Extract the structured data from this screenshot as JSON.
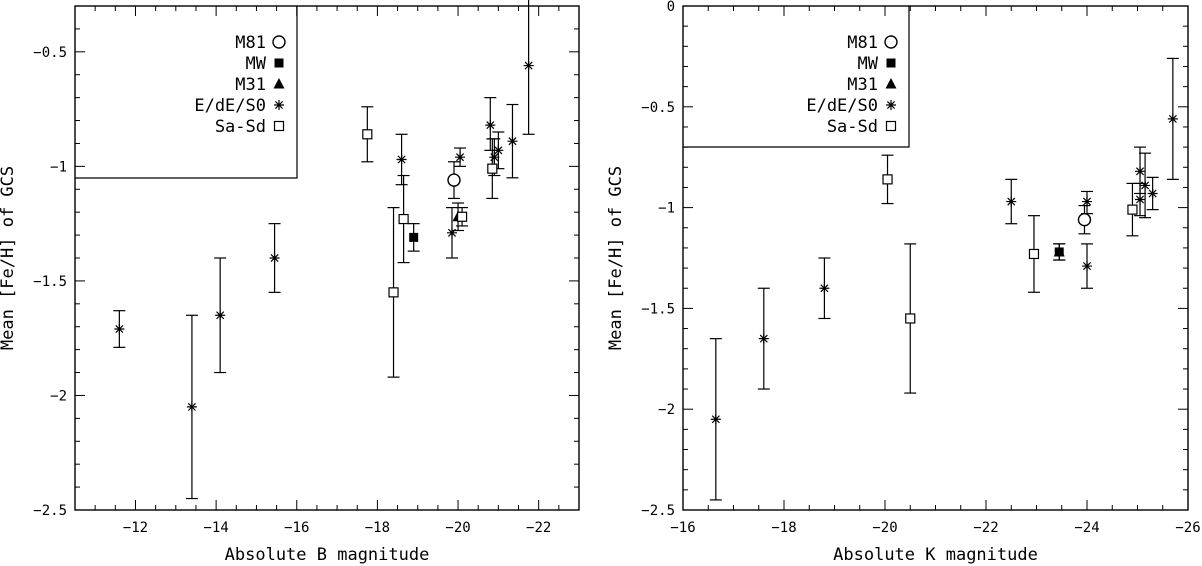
{
  "chart_data": [
    {
      "type": "scatter",
      "xlabel": "Absolute B magnitude",
      "ylabel": "Mean [Fe/H] of GCS",
      "xlim": [
        -10.5,
        -23
      ],
      "ylim": [
        -2.5,
        -0.3
      ],
      "xticks": [
        -12,
        -14,
        -16,
        -18,
        -20,
        -22
      ],
      "xtick_labels": [
        "−12",
        "−14",
        "−16",
        "−18",
        "−20",
        "−22"
      ],
      "yticks": [
        -0.5,
        -1,
        -1.5,
        -2,
        -2.5
      ],
      "ytick_labels": [
        "−0.5",
        "−1",
        "−1.5",
        "−2",
        "−2.5"
      ],
      "legend": {
        "placement": "top-left",
        "entries": [
          {
            "label": "M81",
            "marker": "circle-open"
          },
          {
            "label": "MW",
            "marker": "square-filled"
          },
          {
            "label": "M31",
            "marker": "triangle-filled"
          },
          {
            "label": "E/dE/S0",
            "marker": "asterisk"
          },
          {
            "label": "Sa-Sd",
            "marker": "square-open"
          }
        ]
      },
      "series": [
        {
          "name": "M81",
          "marker": "circle-open",
          "points": [
            {
              "x": -19.9,
              "y": -1.06,
              "lo": -1.14,
              "hi": -0.98
            }
          ]
        },
        {
          "name": "MW",
          "marker": "square-filled",
          "points": [
            {
              "x": -18.9,
              "y": -1.31,
              "lo": -1.37,
              "hi": -1.25
            }
          ]
        },
        {
          "name": "M31",
          "marker": "triangle-filled",
          "points": [
            {
              "x": -20.0,
              "y": -1.22,
              "lo": -1.28,
              "hi": -1.16
            }
          ]
        },
        {
          "name": "E/dE/S0",
          "marker": "asterisk",
          "points": [
            {
              "x": -11.6,
              "y": -1.71,
              "lo": -1.79,
              "hi": -1.63
            },
            {
              "x": -13.4,
              "y": -2.05,
              "lo": -2.45,
              "hi": -1.65
            },
            {
              "x": -14.1,
              "y": -1.65,
              "lo": -1.9,
              "hi": -1.4
            },
            {
              "x": -15.45,
              "y": -1.4,
              "lo": -1.55,
              "hi": -1.25
            },
            {
              "x": -18.6,
              "y": -0.97,
              "lo": -1.08,
              "hi": -0.86
            },
            {
              "x": -19.85,
              "y": -1.29,
              "lo": -1.4,
              "hi": -1.18
            },
            {
              "x": -20.05,
              "y": -0.96,
              "lo": -1.0,
              "hi": -0.92
            },
            {
              "x": -20.8,
              "y": -0.82,
              "lo": -0.93,
              "hi": -0.7
            },
            {
              "x": -20.9,
              "y": -0.96,
              "lo": -1.04,
              "hi": -0.88
            },
            {
              "x": -21.0,
              "y": -0.93,
              "lo": -1.01,
              "hi": -0.85
            },
            {
              "x": -21.35,
              "y": -0.89,
              "lo": -1.05,
              "hi": -0.73
            },
            {
              "x": -21.75,
              "y": -0.56,
              "lo": -0.86,
              "hi": -0.26
            }
          ]
        },
        {
          "name": "Sa-Sd",
          "marker": "square-open",
          "points": [
            {
              "x": -17.75,
              "y": -0.86,
              "lo": -0.98,
              "hi": -0.74
            },
            {
              "x": -18.4,
              "y": -1.55,
              "lo": -1.92,
              "hi": -1.18
            },
            {
              "x": -18.65,
              "y": -1.23,
              "lo": -1.42,
              "hi": -1.04
            },
            {
              "x": -20.1,
              "y": -1.22,
              "lo": -1.26,
              "hi": -1.18
            },
            {
              "x": -20.85,
              "y": -1.01,
              "lo": -1.14,
              "hi": -0.88
            }
          ]
        }
      ]
    },
    {
      "type": "scatter",
      "xlabel": "Absolute K magnitude",
      "ylabel": "Mean [Fe/H] of GCS",
      "xlim": [
        -16,
        -26
      ],
      "ylim": [
        -2.5,
        0
      ],
      "xticks": [
        -16,
        -18,
        -20,
        -22,
        -24,
        -26
      ],
      "xtick_labels": [
        "−16",
        "−18",
        "−20",
        "−22",
        "−24",
        "−26"
      ],
      "yticks": [
        0,
        -0.5,
        -1,
        -1.5,
        -2,
        -2.5
      ],
      "ytick_labels": [
        "0",
        "−0.5",
        "−1",
        "−1.5",
        "−2",
        "−2.5"
      ],
      "legend": {
        "placement": "top-left",
        "entries": [
          {
            "label": "M81",
            "marker": "circle-open"
          },
          {
            "label": "MW",
            "marker": "square-filled"
          },
          {
            "label": "M31",
            "marker": "triangle-filled"
          },
          {
            "label": "E/dE/S0",
            "marker": "asterisk"
          },
          {
            "label": "Sa-Sd",
            "marker": "square-open"
          }
        ]
      },
      "series": [
        {
          "name": "M81",
          "marker": "circle-open",
          "points": [
            {
              "x": -23.95,
              "y": -1.06,
              "lo": -1.13,
              "hi": -0.99
            }
          ]
        },
        {
          "name": "MW",
          "marker": "square-filled",
          "points": [
            {
              "x": -23.45,
              "y": -1.22,
              "lo": -1.26,
              "hi": -1.18
            }
          ]
        },
        {
          "name": "M31",
          "marker": "triangle-filled",
          "points": [
            {
              "x": -23.45,
              "y": -1.22,
              "lo": -1.26,
              "hi": -1.18
            }
          ]
        },
        {
          "name": "E/dE/S0",
          "marker": "asterisk",
          "points": [
            {
              "x": -16.65,
              "y": -2.05,
              "lo": -2.45,
              "hi": -1.65
            },
            {
              "x": -17.6,
              "y": -1.65,
              "lo": -1.9,
              "hi": -1.4
            },
            {
              "x": -18.8,
              "y": -1.4,
              "lo": -1.55,
              "hi": -1.25
            },
            {
              "x": -22.5,
              "y": -0.97,
              "lo": -1.08,
              "hi": -0.86
            },
            {
              "x": -24.0,
              "y": -0.97,
              "lo": -1.03,
              "hi": -0.92
            },
            {
              "x": -24.0,
              "y": -1.29,
              "lo": -1.4,
              "hi": -1.18
            },
            {
              "x": -25.05,
              "y": -0.82,
              "lo": -0.93,
              "hi": -0.7
            },
            {
              "x": -25.05,
              "y": -0.96,
              "lo": -1.04,
              "hi": -0.88
            },
            {
              "x": -25.15,
              "y": -0.89,
              "lo": -1.05,
              "hi": -0.73
            },
            {
              "x": -25.3,
              "y": -0.93,
              "lo": -1.01,
              "hi": -0.85
            },
            {
              "x": -25.7,
              "y": -0.56,
              "lo": -0.86,
              "hi": -0.26
            }
          ]
        },
        {
          "name": "Sa-Sd",
          "marker": "square-open",
          "points": [
            {
              "x": -20.05,
              "y": -0.86,
              "lo": -0.98,
              "hi": -0.74
            },
            {
              "x": -20.5,
              "y": -1.55,
              "lo": -1.92,
              "hi": -1.18
            },
            {
              "x": -22.95,
              "y": -1.23,
              "lo": -1.42,
              "hi": -1.04
            },
            {
              "x": -24.9,
              "y": -1.01,
              "lo": -1.14,
              "hi": -0.88
            }
          ]
        }
      ]
    }
  ]
}
